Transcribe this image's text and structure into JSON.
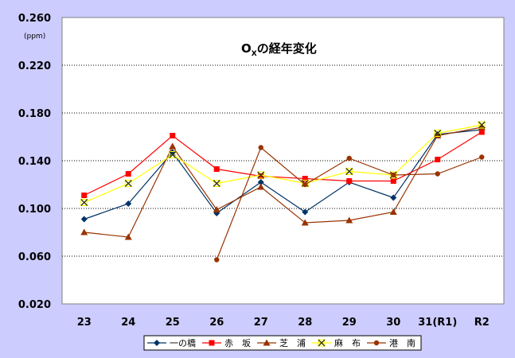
{
  "chart_data": {
    "type": "line",
    "title_main": "O",
    "title_sub": "X",
    "title_rest": "の経年変化",
    "unit_label": "(ppm)",
    "categories": [
      "23",
      "24",
      "25",
      "26",
      "27",
      "28",
      "29",
      "30",
      "31(R1)",
      "R2"
    ],
    "ylim": [
      0.02,
      0.26
    ],
    "yticks": [
      "0.020",
      "0.060",
      "0.100",
      "0.140",
      "0.180",
      "0.220",
      "0.260"
    ],
    "grid": true,
    "legend_position": "bottom",
    "series": [
      {
        "name": "一の橋",
        "color": "#003366",
        "marker": "diamond",
        "values": [
          0.091,
          0.104,
          0.147,
          0.096,
          0.122,
          0.097,
          0.122,
          0.109,
          0.162,
          0.166
        ]
      },
      {
        "name": "赤　坂",
        "color": "#ff0000",
        "marker": "square",
        "values": [
          0.111,
          0.129,
          0.161,
          0.133,
          0.127,
          0.125,
          0.123,
          0.123,
          0.141,
          0.164
        ]
      },
      {
        "name": "芝　浦",
        "color": "#993300",
        "marker": "triangle",
        "values": [
          0.08,
          0.076,
          0.152,
          0.099,
          0.118,
          0.088,
          0.09,
          0.097,
          0.161,
          0.168
        ]
      },
      {
        "name": "麻　布",
        "color": "#ffff00",
        "marker": "x",
        "values": [
          0.105,
          0.121,
          0.145,
          0.121,
          0.128,
          0.121,
          0.131,
          0.128,
          0.163,
          0.17
        ]
      },
      {
        "name": "港　南",
        "color": "#993300",
        "marker": "circle",
        "values": [
          null,
          null,
          null,
          0.057,
          0.151,
          0.12,
          0.142,
          0.128,
          0.129,
          0.143
        ]
      }
    ]
  }
}
